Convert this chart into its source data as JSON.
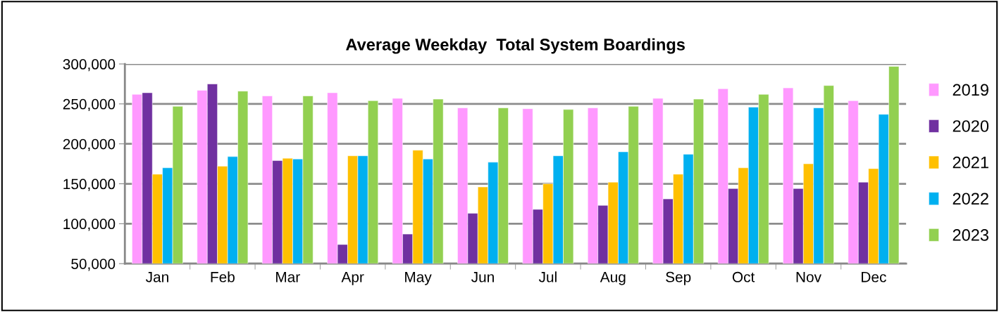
{
  "chart_data": {
    "type": "bar",
    "title": "Average Weekday  Total System Boardings",
    "categories": [
      "Jan",
      "Feb",
      "Mar",
      "Apr",
      "May",
      "Jun",
      "Jul",
      "Aug",
      "Sep",
      "Oct",
      "Nov",
      "Dec"
    ],
    "series": [
      {
        "name": "2019",
        "color": "#ff99ff",
        "values": [
          262000,
          267000,
          260000,
          264000,
          257000,
          245000,
          244000,
          245000,
          257000,
          269000,
          270000,
          254000
        ]
      },
      {
        "name": "2020",
        "color": "#7030a0",
        "values": [
          264000,
          275000,
          179000,
          74000,
          87000,
          113000,
          118000,
          123000,
          131000,
          144000,
          144000,
          152000
        ]
      },
      {
        "name": "2021",
        "color": "#ffc000",
        "values": [
          162000,
          172000,
          182000,
          185000,
          192000,
          146000,
          150000,
          152000,
          162000,
          170000,
          175000,
          169000
        ]
      },
      {
        "name": "2022",
        "color": "#00b0f0",
        "values": [
          170000,
          184000,
          181000,
          185000,
          181000,
          177000,
          185000,
          190000,
          187000,
          246000,
          245000,
          237000
        ]
      },
      {
        "name": "2023",
        "color": "#92d050",
        "values": [
          247000,
          266000,
          260000,
          254000,
          256000,
          245000,
          243000,
          247000,
          256000,
          262000,
          273000,
          297000
        ]
      }
    ],
    "ylim": [
      50000,
      300000
    ],
    "yticks": [
      {
        "value": 50000,
        "label": "50,000"
      },
      {
        "value": 100000,
        "label": "100,000"
      },
      {
        "value": 150000,
        "label": "150,000"
      },
      {
        "value": 200000,
        "label": "200,000"
      },
      {
        "value": 250000,
        "label": "250,000"
      },
      {
        "value": 300000,
        "label": "300,000"
      }
    ],
    "grid": "y",
    "legend": "right"
  }
}
